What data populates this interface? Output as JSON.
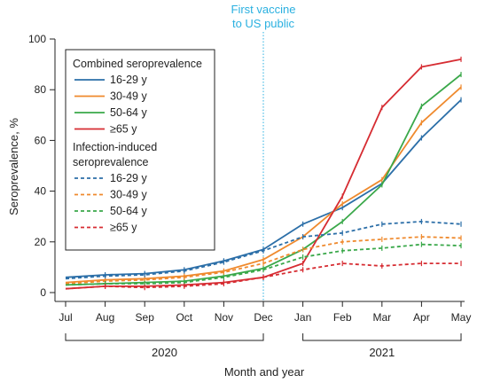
{
  "chart_data": {
    "type": "line",
    "xlabel": "Month and year",
    "ylabel": "Seroprevalence, %",
    "ylim": [
      0,
      100
    ],
    "yticks": [
      0,
      20,
      40,
      60,
      80,
      100
    ],
    "categories": [
      "Jul",
      "Aug",
      "Sep",
      "Oct",
      "Nov",
      "Dec",
      "Jan",
      "Feb",
      "Mar",
      "Apr",
      "May"
    ],
    "year_groups": [
      {
        "label": "2020",
        "from": "Jul",
        "to": "Dec"
      },
      {
        "label": "2021",
        "from": "Jan",
        "to": "May"
      }
    ],
    "annotation": {
      "lines": [
        "First vaccine",
        "to US public"
      ],
      "at": "Dec",
      "color": "#2ab0e0"
    },
    "grid": false,
    "legend_position": "top-left",
    "legend_groups": [
      {
        "title_lines": [
          "Combined seroprevalence"
        ],
        "style": "solid"
      },
      {
        "title_lines": [
          "Infection-induced",
          "seroprevalence"
        ],
        "style": "dashed"
      }
    ],
    "series": [
      {
        "name": "16-29 y",
        "group": 0,
        "color": "#2c6fa8",
        "values": [
          6,
          7,
          7.5,
          9,
          12.5,
          17,
          27,
          33.5,
          43,
          61,
          76
        ]
      },
      {
        "name": "30-49 y",
        "group": 0,
        "color": "#ef8a2e",
        "values": [
          4,
          5,
          5.5,
          6.5,
          8.5,
          13,
          22,
          35,
          44.5,
          67,
          81
        ]
      },
      {
        "name": "50-64 y",
        "group": 0,
        "color": "#3aa84a",
        "values": [
          3,
          3.5,
          4,
          4.5,
          6.5,
          9.5,
          17,
          28,
          42.5,
          73.5,
          86
        ]
      },
      {
        "name": "≥65 y",
        "group": 0,
        "color": "#d62c32",
        "values": [
          1.5,
          2.5,
          2.5,
          3,
          4,
          6,
          11.5,
          38,
          73,
          89,
          92
        ]
      },
      {
        "name": "16-29 y",
        "group": 1,
        "color": "#2c6fa8",
        "values": [
          5.5,
          6.5,
          7,
          8.5,
          12,
          16.5,
          22,
          23.5,
          27,
          28,
          27
        ]
      },
      {
        "name": "30-49 y",
        "group": 1,
        "color": "#ef8a2e",
        "values": [
          3.5,
          4.5,
          5,
          6,
          8,
          11.5,
          17,
          20,
          21,
          22,
          21.5
        ]
      },
      {
        "name": "50-64 y",
        "group": 1,
        "color": "#3aa84a",
        "values": [
          3,
          3.5,
          3.5,
          4,
          6,
          9,
          14,
          16.5,
          17.5,
          19,
          18.5
        ]
      },
      {
        "name": "≥65 y",
        "group": 1,
        "color": "#d62c32",
        "values": [
          1.5,
          2.5,
          2,
          2.5,
          3.5,
          6,
          9,
          11.5,
          10.5,
          11.5,
          11.5
        ]
      }
    ]
  }
}
